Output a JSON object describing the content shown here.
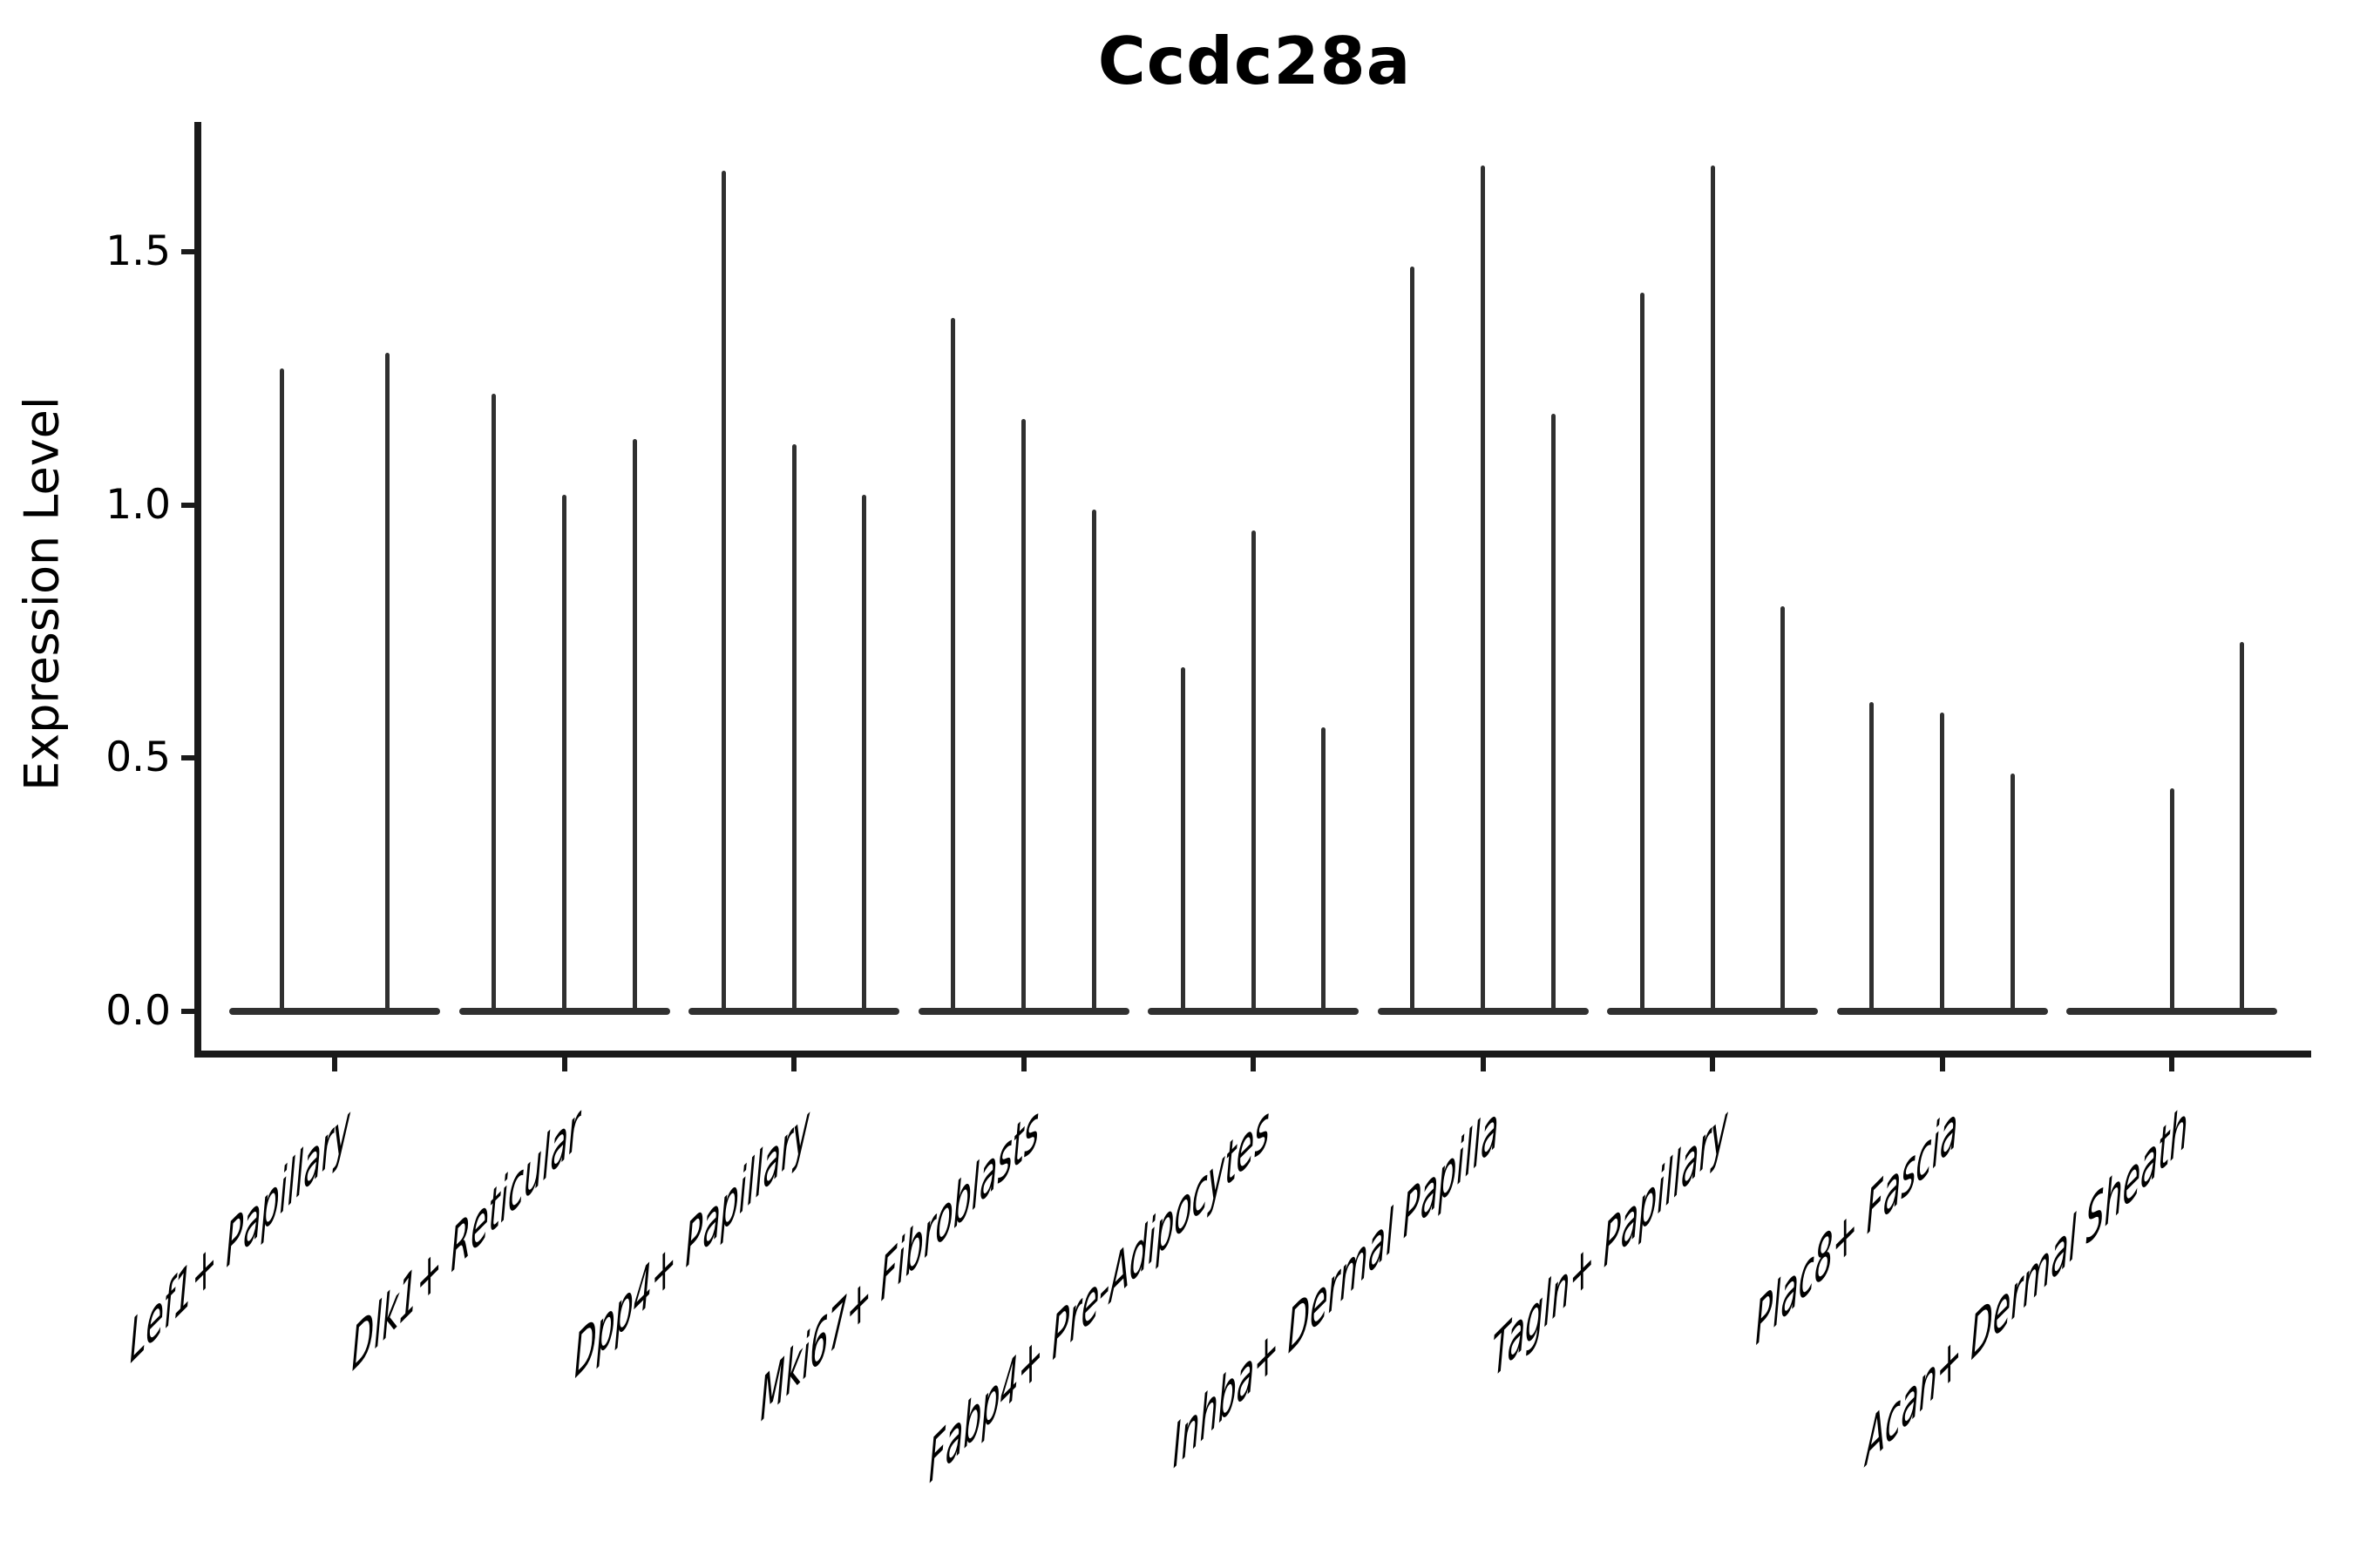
{
  "title": "Ccdc28a",
  "chart_data": {
    "type": "violin",
    "title": "Ccdc28a",
    "xlabel": "",
    "ylabel": "Expression Level",
    "ylim": [
      -0.084,
      1.764
    ],
    "yticks": [
      0.0,
      0.5,
      1.0,
      1.5
    ],
    "ytick_labels": [
      "0.0",
      "0.5",
      "1.0",
      "1.5"
    ],
    "grid": false,
    "legend_position": "none",
    "violin_color": "#303030",
    "axis_color": "#1a1a1a",
    "categories": [
      {
        "label": "Lef1+ Papillary",
        "violin_maxes": [
          1.27,
          1.3
        ]
      },
      {
        "label": "Dlk1+ Reticular",
        "violin_maxes": [
          1.22,
          1.02,
          1.13
        ]
      },
      {
        "label": "Dpp4+ Papillary",
        "violin_maxes": [
          1.66,
          1.12,
          1.02
        ]
      },
      {
        "label": "Mki67+ Fibroblasts",
        "violin_maxes": [
          1.37,
          1.17,
          0.99
        ]
      },
      {
        "label": "Fabp4+ Pre-Adipocytes",
        "violin_maxes": [
          0.68,
          0.95,
          0.56
        ]
      },
      {
        "label": "Inhba+ Dermal Papilla",
        "violin_maxes": [
          1.47,
          1.67,
          1.18
        ]
      },
      {
        "label": "Tagln+ Papillary",
        "violin_maxes": [
          1.42,
          1.67,
          0.8
        ]
      },
      {
        "label": "Plac8+ Fascia",
        "violin_maxes": [
          0.61,
          0.59,
          0.47
        ]
      },
      {
        "label": "Acan+ Dermal Sheath",
        "violin_maxes": [
          0.0,
          0.44,
          0.73
        ]
      }
    ]
  }
}
